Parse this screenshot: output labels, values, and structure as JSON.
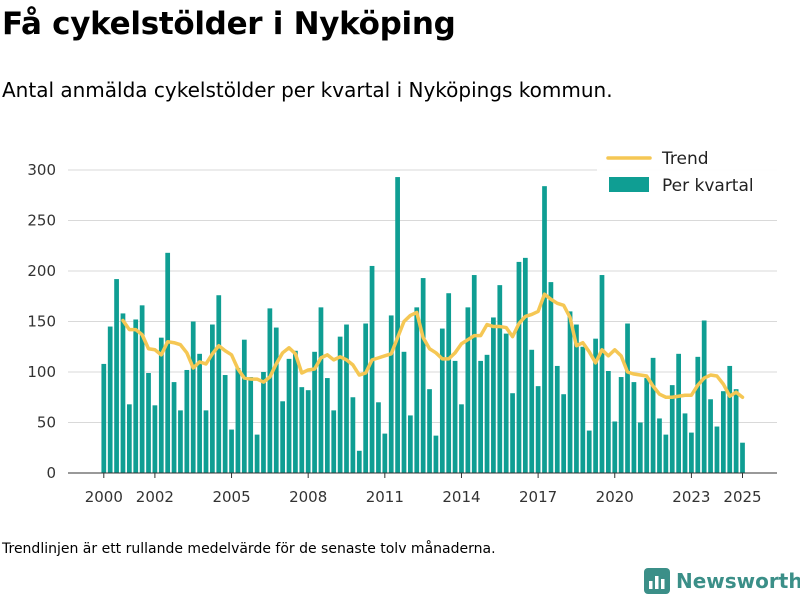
{
  "title": "Få cykelstölder i Nyköping",
  "subtitle": "Antal anmälda cykelstölder per kvartal i Nyköpings kommun.",
  "note": "Trendlinjen är ett rullande medelvärde för de senaste tolv månaderna.",
  "logo_text": "Newsworthy",
  "colors": {
    "bars": "#0f9e93",
    "trend": "#f5c754",
    "grid": "#d9d9d9",
    "logo": "#3b8f88"
  },
  "chart_data": {
    "type": "bar",
    "x_ticks": [
      "2000",
      "2002",
      "2005",
      "2008",
      "2011",
      "2014",
      "2017",
      "2020",
      "2023",
      "2025"
    ],
    "y_ticks": [
      "0",
      "50",
      "100",
      "150",
      "200",
      "250",
      "300"
    ],
    "ylim": [
      0,
      300
    ],
    "legend_position": "top-right",
    "series": [
      {
        "name": "Per kvartal",
        "type": "bar",
        "values": [
          108,
          145,
          192,
          158,
          68,
          152,
          166,
          99,
          67,
          134,
          218,
          90,
          62,
          102,
          150,
          118,
          62,
          147,
          176,
          97,
          43,
          104,
          132,
          95,
          38,
          100,
          163,
          144,
          71,
          113,
          121,
          85,
          82,
          120,
          164,
          94,
          62,
          135,
          147,
          75,
          22,
          148,
          205,
          70,
          39,
          156,
          293,
          120,
          57,
          164,
          193,
          83,
          37,
          143,
          178,
          111,
          68,
          164,
          196,
          111,
          117,
          154,
          186,
          138,
          79,
          209,
          213,
          122,
          86,
          284,
          189,
          106,
          78,
          160,
          147,
          125,
          42,
          133,
          196,
          101,
          51,
          95,
          148,
          90,
          50,
          94,
          114,
          54,
          38,
          87,
          118,
          59,
          40,
          115,
          151,
          73,
          46,
          81,
          106,
          83,
          30
        ]
      },
      {
        "name": "Trend",
        "type": "line",
        "start_index": 3,
        "values": [
          151,
          142,
          142,
          137,
          123,
          122,
          117,
          130,
          129,
          127,
          119,
          104,
          110,
          108,
          118,
          126,
          121,
          117,
          103,
          94,
          93,
          93,
          90,
          95,
          108,
          119,
          124,
          118,
          99,
          102,
          103,
          114,
          117,
          112,
          115,
          112,
          107,
          97,
          99,
          112,
          114,
          116,
          118,
          134,
          150,
          156,
          159,
          134,
          123,
          119,
          113,
          113,
          119,
          128,
          132,
          136,
          136,
          147,
          145,
          145,
          144,
          135,
          148,
          155,
          157,
          160,
          177,
          172,
          168,
          166,
          154,
          126,
          129,
          120,
          109,
          122,
          116,
          122,
          116,
          100,
          98,
          97,
          96,
          86,
          78,
          75,
          75,
          76,
          77,
          77,
          87,
          94,
          97,
          96,
          88,
          76,
          80,
          75
        ]
      }
    ]
  }
}
